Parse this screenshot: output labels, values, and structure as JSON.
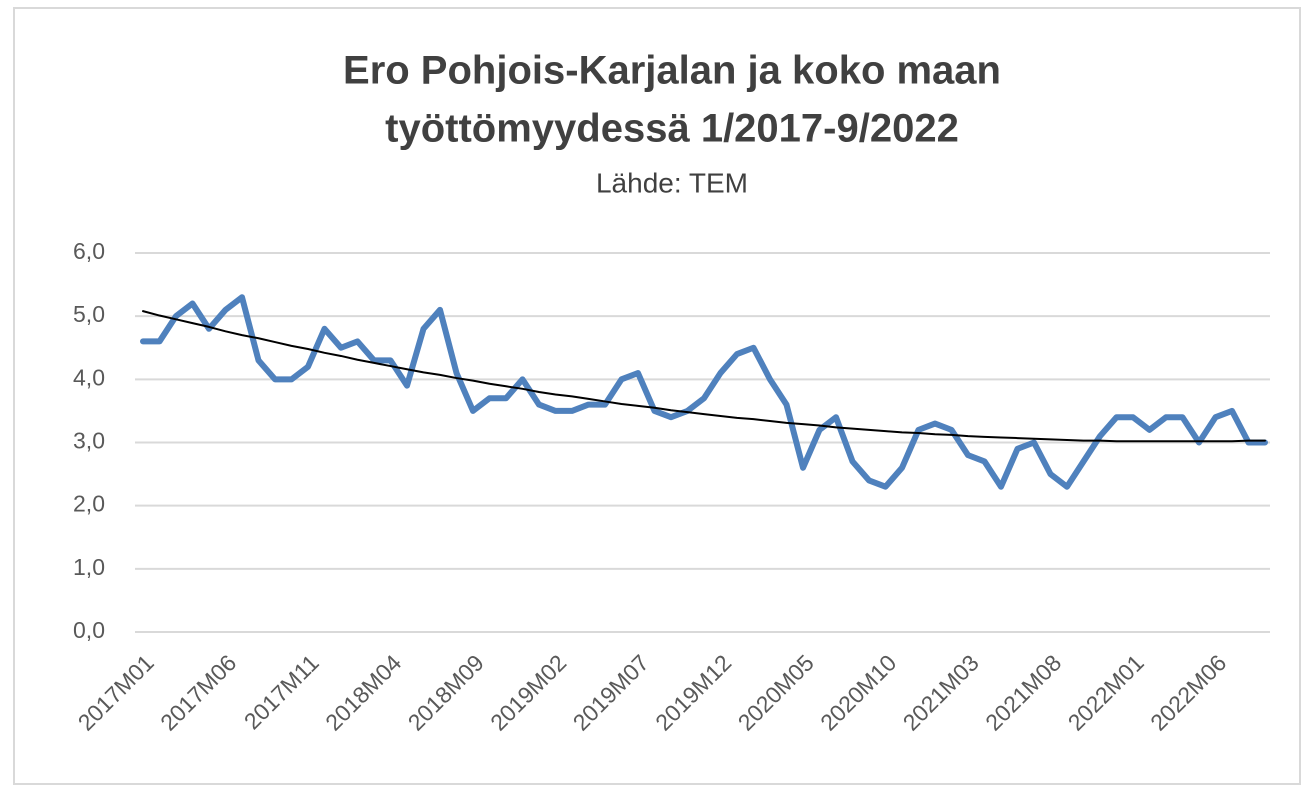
{
  "chart_data": {
    "type": "line",
    "title": [
      "Ero Pohjois-Karjalan ja koko maan",
      "työttömyydessä 1/2017-9/2022"
    ],
    "subtitle": "Lähde: TEM",
    "categories": [
      "2017M01",
      null,
      null,
      null,
      null,
      "2017M06",
      null,
      null,
      null,
      null,
      "2017M11",
      null,
      null,
      null,
      null,
      "2018M04",
      null,
      null,
      null,
      null,
      "2018M09",
      null,
      null,
      null,
      null,
      "2019M02",
      null,
      null,
      null,
      null,
      "2019M07",
      null,
      null,
      null,
      null,
      "2019M12",
      null,
      null,
      null,
      null,
      "2020M05",
      null,
      null,
      null,
      null,
      "2020M10",
      null,
      null,
      null,
      null,
      "2021M03",
      null,
      null,
      null,
      null,
      "2021M08",
      null,
      null,
      null,
      null,
      "2022M01",
      null,
      null,
      null,
      null,
      "2022M06",
      null,
      null,
      null
    ],
    "series": [
      {
        "color": "#4f81bd",
        "width": 6,
        "values": [
          4.6,
          4.6,
          5.0,
          5.2,
          4.8,
          5.1,
          5.3,
          4.3,
          4.0,
          4.0,
          4.2,
          4.8,
          4.5,
          4.6,
          4.3,
          4.3,
          3.9,
          4.8,
          5.1,
          4.1,
          3.5,
          3.7,
          3.7,
          4.0,
          3.6,
          3.5,
          3.5,
          3.6,
          3.6,
          4.0,
          4.1,
          3.5,
          3.4,
          3.5,
          3.7,
          4.1,
          4.4,
          4.5,
          4.0,
          3.6,
          2.6,
          3.2,
          3.4,
          2.7,
          2.4,
          2.3,
          2.6,
          3.2,
          3.3,
          3.2,
          2.8,
          2.7,
          2.3,
          2.9,
          3.0,
          2.5,
          2.3,
          2.7,
          3.1,
          3.4,
          3.4,
          3.2,
          3.4,
          3.4,
          3.0,
          3.4,
          3.5,
          3.0,
          3.0
        ]
      },
      {
        "color": "#000000",
        "width": 2,
        "values": [
          5.08,
          5.01,
          4.95,
          4.89,
          4.83,
          4.76,
          4.7,
          4.65,
          4.59,
          4.53,
          4.48,
          4.42,
          4.37,
          4.31,
          4.26,
          4.21,
          4.16,
          4.11,
          4.07,
          4.02,
          3.98,
          3.93,
          3.89,
          3.85,
          3.8,
          3.76,
          3.73,
          3.69,
          3.65,
          3.61,
          3.58,
          3.55,
          3.51,
          3.48,
          3.45,
          3.42,
          3.39,
          3.37,
          3.34,
          3.31,
          3.29,
          3.27,
          3.24,
          3.22,
          3.2,
          3.18,
          3.16,
          3.15,
          3.13,
          3.12,
          3.1,
          3.09,
          3.08,
          3.07,
          3.06,
          3.05,
          3.04,
          3.03,
          3.03,
          3.02,
          3.02,
          3.02,
          3.02,
          3.02,
          3.02,
          3.02,
          3.02,
          3.03,
          3.03
        ]
      }
    ],
    "ylim": [
      0,
      6
    ],
    "yticks": [
      {
        "value": 0,
        "label": "0,0"
      },
      {
        "value": 1,
        "label": "1,0"
      },
      {
        "value": 2,
        "label": "2,0"
      },
      {
        "value": 3,
        "label": "3,0"
      },
      {
        "value": 4,
        "label": "4,0"
      },
      {
        "value": 5,
        "label": "5,0"
      },
      {
        "value": 6,
        "label": "6,0"
      }
    ],
    "grid": true
  }
}
